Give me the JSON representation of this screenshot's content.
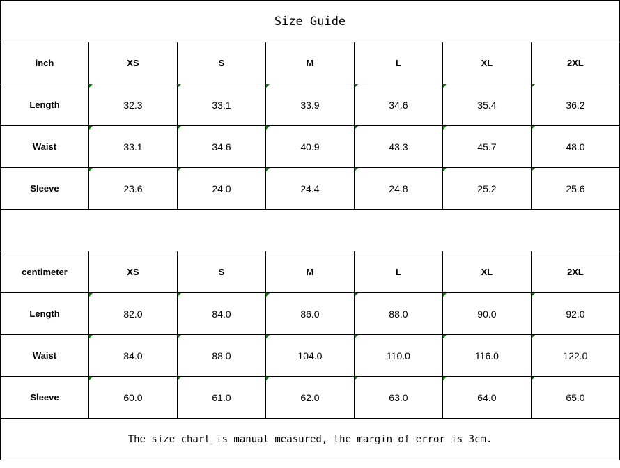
{
  "title": "Size Guide",
  "sizes": [
    "XS",
    "S",
    "M",
    "L",
    "XL",
    "2XL"
  ],
  "inch": {
    "unit_label": "inch",
    "rows": [
      {
        "label": "Length",
        "values": [
          "32.3",
          "33.1",
          "33.9",
          "34.6",
          "35.4",
          "36.2"
        ]
      },
      {
        "label": "Waist",
        "values": [
          "33.1",
          "34.6",
          "40.9",
          "43.3",
          "45.7",
          "48.0"
        ]
      },
      {
        "label": "Sleeve",
        "values": [
          "23.6",
          "24.0",
          "24.4",
          "24.8",
          "25.2",
          "25.6"
        ]
      }
    ]
  },
  "centimeter": {
    "unit_label": "centimeter",
    "rows": [
      {
        "label": "Length",
        "values": [
          "82.0",
          "84.0",
          "86.0",
          "88.0",
          "90.0",
          "92.0"
        ]
      },
      {
        "label": "Waist",
        "values": [
          "84.0",
          "88.0",
          "104.0",
          "110.0",
          "116.0",
          "122.0"
        ]
      },
      {
        "label": "Sleeve",
        "values": [
          "60.0",
          "61.0",
          "62.0",
          "63.0",
          "64.0",
          "65.0"
        ]
      }
    ]
  },
  "note": "The size chart is manual measured, the margin of error is 3cm.",
  "colors": {
    "border": "#000000",
    "cell_marker": "#0a7a0a"
  }
}
